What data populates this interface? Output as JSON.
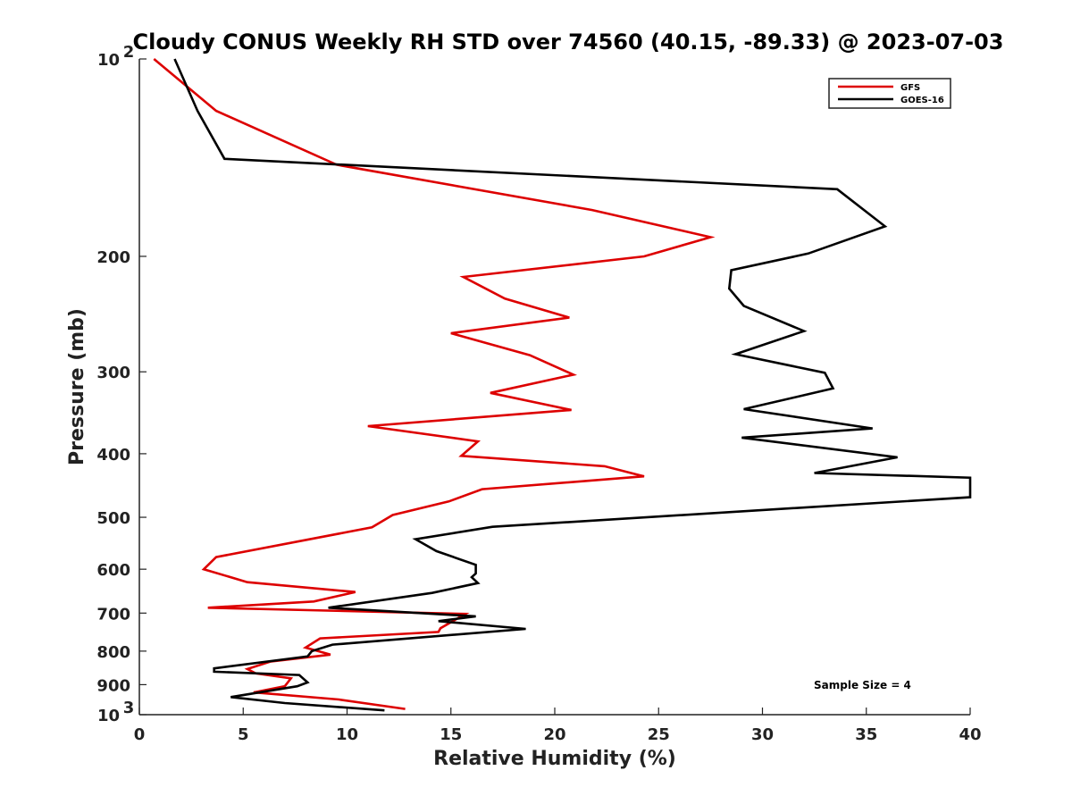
{
  "chart_data": {
    "type": "line",
    "title": "Cloudy CONUS Weekly RH STD over 74560 (40.15, -89.33) @ 2023-07-03",
    "xlabel": "Relative Humidity (%)",
    "ylabel": "Pressure (mb)",
    "xlim": [
      0,
      40
    ],
    "ylim": [
      100,
      1000
    ],
    "y_scale": "log",
    "y_reversed": true,
    "grid": false,
    "legend_position": "top-right",
    "x_ticks": [
      0,
      5,
      10,
      15,
      20,
      25,
      30,
      35,
      40
    ],
    "x_tick_labels": [
      "0",
      "5",
      "10",
      "15",
      "20",
      "25",
      "30",
      "35",
      "40"
    ],
    "y_ticks": [
      100,
      200,
      300,
      400,
      500,
      600,
      700,
      800,
      900,
      1000
    ],
    "y_tick_labels": [
      {
        "base": "10",
        "exp": "2"
      },
      {
        "base": "200",
        "exp": ""
      },
      {
        "base": "300",
        "exp": ""
      },
      {
        "base": "400",
        "exp": ""
      },
      {
        "base": "500",
        "exp": ""
      },
      {
        "base": "600",
        "exp": ""
      },
      {
        "base": "700",
        "exp": ""
      },
      {
        "base": "800",
        "exp": ""
      },
      {
        "base": "900",
        "exp": ""
      },
      {
        "base": "10",
        "exp": "3"
      }
    ],
    "annotation": "Sample Size = 4",
    "series": [
      {
        "name": "GFS",
        "color": "#dd0000",
        "points": [
          [
            0.7,
            100
          ],
          [
            3.7,
            120
          ],
          [
            9.5,
            145
          ],
          [
            21.8,
            170
          ],
          [
            27.5,
            187
          ],
          [
            24.3,
            200
          ],
          [
            15.6,
            215
          ],
          [
            17.6,
            232
          ],
          [
            20.7,
            248
          ],
          [
            15.0,
            262
          ],
          [
            18.8,
            283
          ],
          [
            20.9,
            303
          ],
          [
            16.9,
            323
          ],
          [
            20.8,
            343
          ],
          [
            11.0,
            363
          ],
          [
            16.3,
            383
          ],
          [
            15.5,
            403
          ],
          [
            22.4,
            418
          ],
          [
            24.3,
            433
          ],
          [
            16.5,
            453
          ],
          [
            14.9,
            473
          ],
          [
            12.2,
            496
          ],
          [
            11.2,
            518
          ],
          [
            3.7,
            575
          ],
          [
            3.1,
            600
          ],
          [
            5.2,
            628
          ],
          [
            10.4,
            650
          ],
          [
            8.4,
            672
          ],
          [
            3.3,
            687
          ],
          [
            15.7,
            702
          ],
          [
            14.5,
            738
          ],
          [
            14.4,
            748
          ],
          [
            8.7,
            765
          ],
          [
            8.0,
            790
          ],
          [
            9.2,
            810
          ],
          [
            6.3,
            830
          ],
          [
            5.2,
            852
          ],
          [
            5.6,
            865
          ],
          [
            7.3,
            880
          ],
          [
            7.0,
            905
          ],
          [
            5.5,
            925
          ],
          [
            9.6,
            948
          ],
          [
            12.8,
            980
          ]
        ]
      },
      {
        "name": "GOES-16",
        "color": "#000000",
        "points": [
          [
            1.7,
            100
          ],
          [
            2.8,
            120
          ],
          [
            4.1,
            142
          ],
          [
            33.6,
            158
          ],
          [
            35.9,
            180
          ],
          [
            32.2,
            198
          ],
          [
            28.5,
            210
          ],
          [
            28.4,
            224
          ],
          [
            29.1,
            238
          ],
          [
            32.0,
            260
          ],
          [
            28.7,
            282
          ],
          [
            33.0,
            301
          ],
          [
            33.4,
            318
          ],
          [
            29.1,
            342
          ],
          [
            35.3,
            366
          ],
          [
            29.0,
            378
          ],
          [
            36.5,
            405
          ],
          [
            32.5,
            428
          ],
          [
            40.0,
            435
          ],
          [
            40.0,
            466
          ],
          [
            17.0,
            517
          ],
          [
            13.3,
            540
          ],
          [
            14.3,
            563
          ],
          [
            16.2,
            591
          ],
          [
            16.2,
            609
          ],
          [
            16.0,
            617
          ],
          [
            16.3,
            630
          ],
          [
            14.1,
            652
          ],
          [
            9.1,
            687
          ],
          [
            16.2,
            708
          ],
          [
            14.4,
            720
          ],
          [
            18.6,
            740
          ],
          [
            9.3,
            782
          ],
          [
            8.3,
            800
          ],
          [
            8.1,
            815
          ],
          [
            3.6,
            850
          ],
          [
            3.6,
            860
          ],
          [
            7.7,
            870
          ],
          [
            8.1,
            893
          ],
          [
            7.6,
            905
          ],
          [
            4.4,
            940
          ],
          [
            7.0,
            960
          ],
          [
            11.8,
            985
          ]
        ]
      }
    ]
  }
}
